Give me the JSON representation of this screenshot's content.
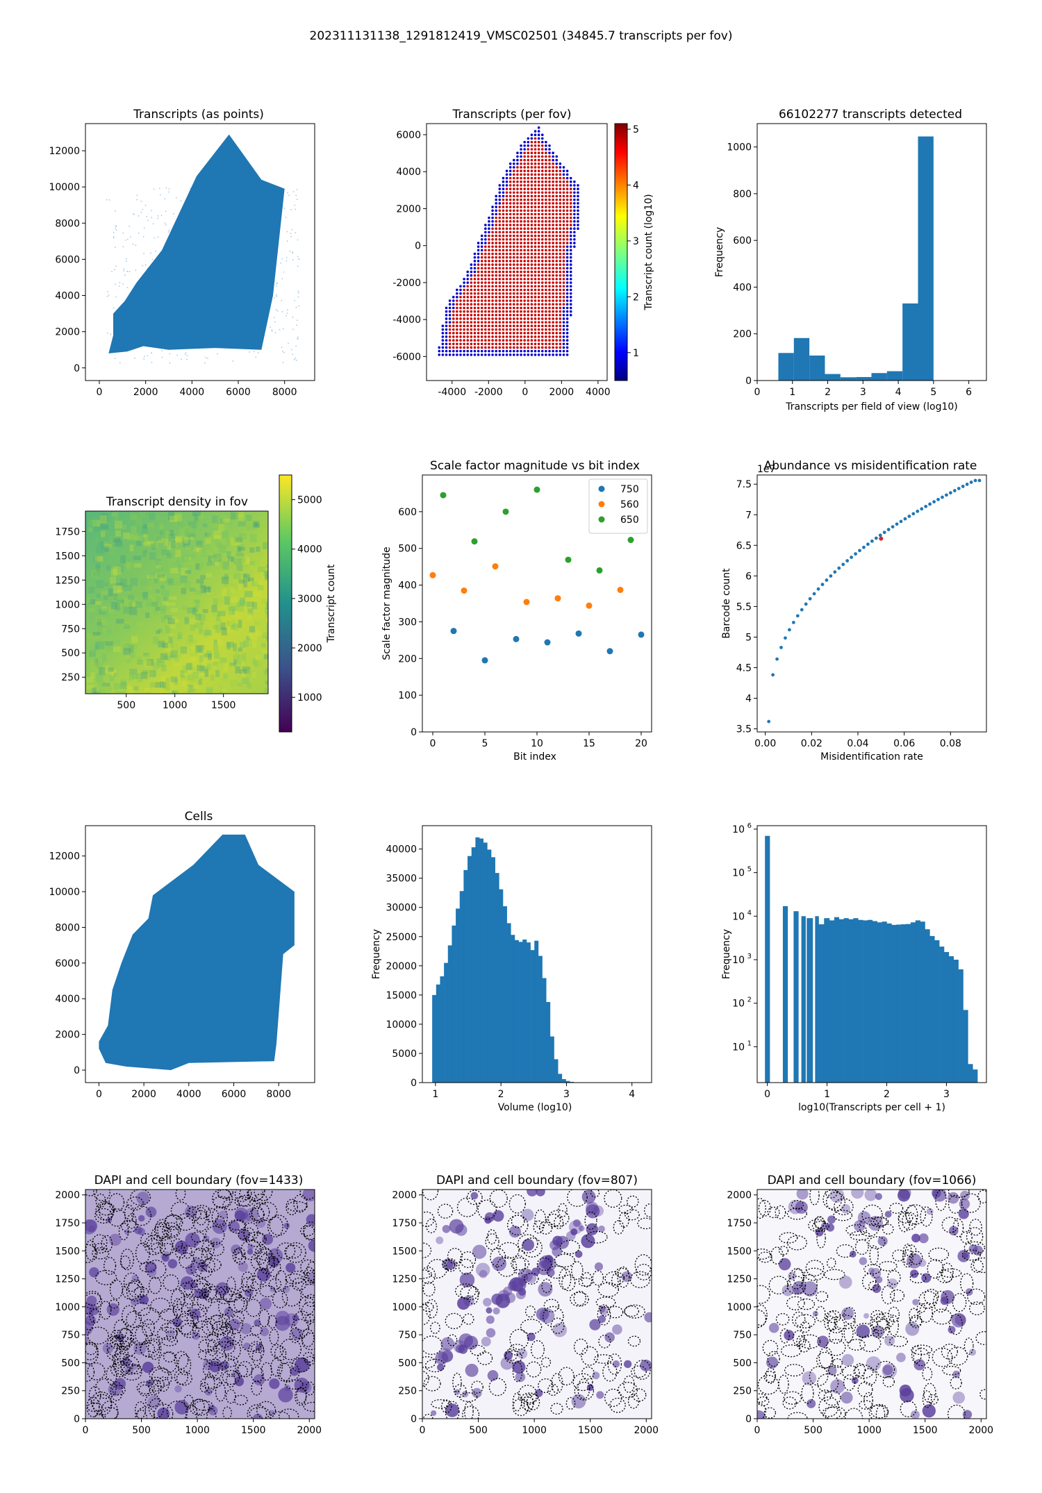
{
  "figure": {
    "title": "202311131138_1291812419_VMSC02501 (34845.7 transcripts per fov)"
  },
  "colors": {
    "primary": "#1f77b4",
    "series_750": "#1f77b4",
    "series_560": "#ff7f0e",
    "series_650": "#2ca02c",
    "highlight": "#d62728",
    "dapi": "#5a3f9c"
  },
  "chart_data": [
    {
      "id": "p1",
      "type": "scatter",
      "title": "Transcripts (as points)",
      "xlabel": "",
      "ylabel": "",
      "xlim": [
        -600,
        9300
      ],
      "ylim": [
        -700,
        13500
      ],
      "xticks": [
        0,
        2000,
        4000,
        6000,
        8000
      ],
      "yticks": [
        0,
        2000,
        4000,
        6000,
        8000,
        10000,
        12000
      ],
      "grid": false,
      "region_outline": [
        [
          400,
          800
        ],
        [
          1200,
          900
        ],
        [
          1900,
          1200
        ],
        [
          3000,
          1000
        ],
        [
          5000,
          1100
        ],
        [
          7000,
          1000
        ],
        [
          7500,
          4000
        ],
        [
          8000,
          9900
        ],
        [
          7000,
          10400
        ],
        [
          5600,
          12900
        ],
        [
          4200,
          10600
        ],
        [
          2700,
          6500
        ],
        [
          1600,
          4700
        ],
        [
          1100,
          3700
        ],
        [
          600,
          3000
        ],
        [
          600,
          1800
        ]
      ]
    },
    {
      "id": "p2",
      "type": "scatter",
      "title": "Transcripts (per fov)",
      "xlabel": "",
      "ylabel": "",
      "xlim": [
        -5400,
        4500
      ],
      "ylim": [
        -7300,
        6600
      ],
      "xticks": [
        -4000,
        -2000,
        0,
        2000,
        4000
      ],
      "yticks": [
        -6000,
        -4000,
        -2000,
        0,
        2000,
        4000,
        6000
      ],
      "colorbar": {
        "label": "Transcript count (log10)",
        "ticks": [
          1,
          2,
          3,
          4,
          5
        ],
        "range": [
          0.5,
          5.1
        ],
        "cmap": "jet"
      },
      "region_outline": [
        [
          -4800,
          -6000
        ],
        [
          -4600,
          -4600
        ],
        [
          -4300,
          -3200
        ],
        [
          -3200,
          -1500
        ],
        [
          -2000,
          1600
        ],
        [
          -1200,
          3800
        ],
        [
          0,
          5800
        ],
        [
          700,
          6500
        ],
        [
          1500,
          5200
        ],
        [
          2900,
          3300
        ],
        [
          3100,
          1800
        ],
        [
          2700,
          -200
        ],
        [
          2400,
          -6000
        ]
      ]
    },
    {
      "id": "p3",
      "type": "bar",
      "title": "66102277 transcripts detected",
      "xlabel": "Transcripts per field of view (log10)",
      "ylabel": "Frequency",
      "xlim": [
        0,
        6.5
      ],
      "ylim": [
        0,
        1100
      ],
      "xticks": [
        0,
        1,
        2,
        3,
        4,
        5,
        6
      ],
      "yticks": [
        0,
        200,
        400,
        600,
        800,
        1000
      ],
      "bin_edges": [
        0.6,
        1.04,
        1.48,
        1.92,
        2.36,
        2.8,
        3.24,
        3.68,
        4.12,
        4.56,
        5.0
      ],
      "values": [
        118,
        182,
        107,
        28,
        14,
        15,
        32,
        40,
        330,
        1045
      ]
    },
    {
      "id": "p4",
      "type": "heatmap",
      "title": "Transcript density in fov",
      "xlabel": "",
      "ylabel": "",
      "xlim": [
        80,
        1960
      ],
      "ylim": [
        80,
        1960
      ],
      "xticks": [
        500,
        1000,
        1500
      ],
      "yticks": [
        250,
        500,
        750,
        1000,
        1250,
        1500,
        1750
      ],
      "colorbar": {
        "label": "Transcript count",
        "ticks": [
          1000,
          2000,
          3000,
          4000,
          5000
        ],
        "range": [
          300,
          5500
        ],
        "cmap": "viridis"
      }
    },
    {
      "id": "p5",
      "type": "scatter",
      "title": "Scale factor magnitude vs bit index",
      "xlabel": "Bit index",
      "ylabel": "Scale factor magnitude",
      "xlim": [
        -1,
        21
      ],
      "ylim": [
        0,
        700
      ],
      "xticks": [
        0,
        5,
        10,
        15,
        20
      ],
      "yticks": [
        0,
        100,
        200,
        300,
        400,
        500,
        600
      ],
      "legend": "top-right",
      "series": [
        {
          "name": "750",
          "x": [
            2,
            5,
            8,
            11,
            14,
            17,
            20
          ],
          "y": [
            275,
            195,
            253,
            244,
            268,
            220,
            265
          ]
        },
        {
          "name": "560",
          "x": [
            0,
            3,
            6,
            9,
            12,
            15,
            18
          ],
          "y": [
            427,
            385,
            451,
            354,
            364,
            344,
            387
          ]
        },
        {
          "name": "650",
          "x": [
            1,
            4,
            7,
            10,
            13,
            16,
            19
          ],
          "y": [
            645,
            519,
            600,
            660,
            469,
            440,
            523
          ]
        }
      ]
    },
    {
      "id": "p6",
      "type": "scatter",
      "title": "Abundance vs misidentification rate",
      "xlabel": "Misidentification rate",
      "ylabel": "Barcode count",
      "offset_text": "1e7",
      "xlim": [
        -0.0035,
        0.0955
      ],
      "ylim": [
        3.45,
        7.65
      ],
      "xticks": [
        0.0,
        0.02,
        0.04,
        0.06,
        0.08
      ],
      "xticklabels": [
        "0.00",
        "0.02",
        "0.04",
        "0.06",
        "0.08"
      ],
      "yticks": [
        3.5,
        4.0,
        4.5,
        5.0,
        5.5,
        6.0,
        6.5,
        7.0,
        7.5
      ],
      "highlight": {
        "x": 0.05,
        "y": 6.61
      }
    },
    {
      "id": "p7",
      "type": "scatter",
      "title": "Cells",
      "xlabel": "",
      "ylabel": "",
      "xlim": [
        -600,
        9600
      ],
      "ylim": [
        -700,
        13700
      ],
      "xticks": [
        0,
        2000,
        4000,
        6000,
        8000
      ],
      "yticks": [
        0,
        2000,
        4000,
        6000,
        8000,
        10000,
        12000
      ],
      "region_outline": [
        [
          0,
          1200
        ],
        [
          300,
          400
        ],
        [
          1200,
          200
        ],
        [
          3200,
          0
        ],
        [
          4000,
          400
        ],
        [
          7800,
          500
        ],
        [
          7900,
          1500
        ],
        [
          8200,
          6500
        ],
        [
          8700,
          7000
        ],
        [
          8700,
          10000
        ],
        [
          7100,
          11500
        ],
        [
          6500,
          13200
        ],
        [
          5500,
          13200
        ],
        [
          4200,
          11500
        ],
        [
          2400,
          9800
        ],
        [
          2200,
          8500
        ],
        [
          1500,
          7600
        ],
        [
          1000,
          6000
        ],
        [
          600,
          4500
        ],
        [
          400,
          2500
        ],
        [
          0,
          1600
        ]
      ]
    },
    {
      "id": "p8",
      "type": "bar",
      "title": "",
      "xlabel": "Volume (log10)",
      "ylabel": "Frequency",
      "xlim": [
        0.8,
        4.3
      ],
      "ylim": [
        0,
        44000
      ],
      "xticks": [
        1,
        2,
        3,
        4
      ],
      "yticks": [
        0,
        5000,
        10000,
        15000,
        20000,
        25000,
        30000,
        35000,
        40000
      ],
      "bin_start": 0.95,
      "bin_width": 0.06,
      "values": [
        15000,
        16800,
        18200,
        20500,
        23500,
        26900,
        29800,
        32800,
        36400,
        38800,
        40300,
        42000,
        41800,
        41100,
        39900,
        38600,
        35900,
        33100,
        30200,
        27300,
        25300,
        24400,
        24100,
        24500,
        24000,
        22700,
        24300,
        21700,
        17900,
        13800,
        7900,
        4000,
        1500,
        600,
        280,
        130,
        60,
        25,
        10,
        5
      ]
    },
    {
      "id": "p9",
      "type": "bar",
      "title": "",
      "xlabel": "log10(Transcripts per cell + 1)",
      "ylabel": "Frequency",
      "yscale": "log",
      "xlim": [
        -0.17,
        3.67
      ],
      "ylim": [
        1.5,
        1200000
      ],
      "xticks": [
        0,
        1,
        2,
        3
      ],
      "yticks": [
        10,
        100,
        1000,
        10000,
        100000,
        1000000
      ],
      "yticklabels": [
        "10",
        "10",
        "10",
        "10",
        "10",
        "10"
      ],
      "ytickexps": [
        "1",
        "2",
        "3",
        "4",
        "5",
        "6"
      ],
      "bins": [
        [
          -0.04,
          0.04,
          700000
        ],
        [
          0.26,
          0.34,
          17000
        ],
        [
          0.44,
          0.52,
          13000
        ],
        [
          0.57,
          0.64,
          10000
        ],
        [
          0.66,
          0.76,
          9000
        ],
        [
          0.8,
          0.86,
          10000
        ],
        [
          0.86,
          0.95,
          6500
        ],
        [
          0.95,
          1.04,
          9000
        ],
        [
          1.04,
          1.12,
          8000
        ],
        [
          1.12,
          1.2,
          9500
        ],
        [
          1.2,
          1.28,
          8500
        ],
        [
          1.28,
          1.36,
          9000
        ],
        [
          1.36,
          1.44,
          8500
        ],
        [
          1.44,
          1.52,
          9000
        ],
        [
          1.52,
          1.6,
          8200
        ],
        [
          1.6,
          1.68,
          8000
        ],
        [
          1.68,
          1.76,
          8200
        ],
        [
          1.76,
          1.84,
          7700
        ],
        [
          1.84,
          1.92,
          7200
        ],
        [
          1.92,
          2.0,
          7500
        ],
        [
          2.0,
          2.08,
          6800
        ],
        [
          2.08,
          2.16,
          6300
        ],
        [
          2.16,
          2.24,
          6400
        ],
        [
          2.24,
          2.32,
          6500
        ],
        [
          2.32,
          2.4,
          6600
        ],
        [
          2.4,
          2.48,
          7200
        ],
        [
          2.48,
          2.56,
          8000
        ],
        [
          2.56,
          2.64,
          7500
        ],
        [
          2.64,
          2.72,
          5000
        ],
        [
          2.72,
          2.8,
          3500
        ],
        [
          2.8,
          2.88,
          2800
        ],
        [
          2.88,
          2.96,
          2000
        ],
        [
          2.96,
          3.04,
          1500
        ],
        [
          3.04,
          3.12,
          1200
        ],
        [
          3.12,
          3.2,
          1000
        ],
        [
          3.2,
          3.28,
          600
        ],
        [
          3.28,
          3.36,
          70
        ],
        [
          3.36,
          3.44,
          4
        ],
        [
          3.44,
          3.52,
          3
        ]
      ]
    },
    {
      "id": "p10",
      "type": "heatmap",
      "title": "DAPI and cell boundary (fov=1433)",
      "xlabel": "",
      "ylabel": "",
      "xlim": [
        0,
        2048
      ],
      "ylim": [
        0,
        2048
      ],
      "xticks": [
        0,
        500,
        1000,
        1500,
        2000
      ],
      "yticks": [
        0,
        250,
        500,
        750,
        1000,
        1250,
        1500,
        1750,
        2000
      ]
    },
    {
      "id": "p11",
      "type": "heatmap",
      "title": "DAPI and cell boundary (fov=807)",
      "xlabel": "",
      "ylabel": "",
      "xlim": [
        0,
        2048
      ],
      "ylim": [
        0,
        2048
      ],
      "xticks": [
        0,
        500,
        1000,
        1500,
        2000
      ],
      "yticks": [
        0,
        250,
        500,
        750,
        1000,
        1250,
        1500,
        1750,
        2000
      ]
    },
    {
      "id": "p12",
      "type": "heatmap",
      "title": "DAPI and cell boundary (fov=1066)",
      "xlabel": "",
      "ylabel": "",
      "xlim": [
        0,
        2048
      ],
      "ylim": [
        0,
        2048
      ],
      "xticks": [
        0,
        500,
        1000,
        1500,
        2000
      ],
      "yticks": [
        0,
        250,
        500,
        750,
        1000,
        1250,
        1500,
        1750,
        2000
      ]
    }
  ]
}
